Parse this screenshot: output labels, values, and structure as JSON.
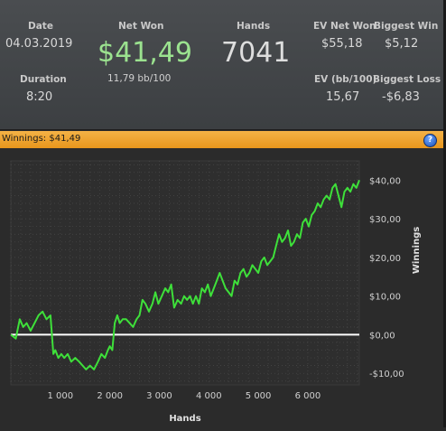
{
  "stats": {
    "date_label": "Date",
    "date_value": "04.03.2019",
    "duration_label": "Duration",
    "duration_value": "8:20",
    "net_won_label": "Net Won",
    "net_won_value": "$41,49",
    "net_won_sub": "11,79 bb/100",
    "hands_label": "Hands",
    "hands_value": "7041",
    "ev_net_won_label": "EV Net Won",
    "ev_net_won_value": "$55,18",
    "ev_bb100_label": "EV (bb/100)",
    "ev_bb100_value": "15,67",
    "biggest_win_label": "Biggest Win",
    "biggest_win_value": "$5,12",
    "biggest_loss_label": "Biggest Loss",
    "biggest_loss_value": "-$6,83"
  },
  "panel": {
    "title": "Winnings: $41,49",
    "help_icon": "help-question-icon"
  },
  "chart_data": {
    "type": "line",
    "title": "",
    "xlabel": "Hands",
    "ylabel": "Winnings",
    "xlim": [
      0,
      7041
    ],
    "ylim": [
      -13,
      45
    ],
    "x_ticks": [
      1000,
      2000,
      3000,
      4000,
      5000,
      6000
    ],
    "x_tick_labels": [
      "1 000",
      "2 000",
      "3 000",
      "4 000",
      "5 000",
      "6 000"
    ],
    "y_ticks": [
      -10,
      0,
      10,
      20,
      30,
      40
    ],
    "y_tick_labels": [
      "-$10,00",
      "$0,00",
      "$10,00",
      "$20,00",
      "$30,00",
      "$40,00"
    ],
    "grid": true,
    "zero_line": true,
    "line_color": "#3ee03a",
    "zero_line_color": "#ffffff",
    "series": [
      {
        "x": [
          0,
          100,
          180,
          250,
          320,
          400,
          480,
          560,
          640,
          720,
          800,
          860,
          900,
          960,
          1020,
          1080,
          1150,
          1220,
          1300,
          1380,
          1450,
          1520,
          1600,
          1680,
          1760,
          1830,
          1900,
          1960,
          2000,
          2050,
          2100,
          2150,
          2200,
          2260,
          2330,
          2400,
          2470,
          2540,
          2600,
          2660,
          2720,
          2790,
          2860,
          2920,
          2980,
          3050,
          3120,
          3180,
          3240,
          3300,
          3370,
          3440,
          3500,
          3560,
          3620,
          3680,
          3740,
          3800,
          3860,
          3920,
          3980,
          4040,
          4100,
          4160,
          4220,
          4280,
          4340,
          4400,
          4460,
          4520,
          4580,
          4640,
          4700,
          4760,
          4820,
          4880,
          4940,
          5000,
          5060,
          5120,
          5180,
          5240,
          5300,
          5360,
          5420,
          5480,
          5540,
          5600,
          5660,
          5720,
          5780,
          5840,
          5900,
          5960,
          6020,
          6080,
          6140,
          6200,
          6260,
          6320,
          6380,
          6440,
          6500,
          6560,
          6620,
          6680,
          6740,
          6800,
          6860,
          6920,
          6980,
          7041
        ],
        "y": [
          0,
          -1,
          4,
          2,
          3,
          1,
          3,
          5,
          6,
          4,
          5,
          -5,
          -4,
          -6,
          -5,
          -6,
          -5,
          -7,
          -6,
          -7,
          -8,
          -9,
          -8,
          -9,
          -7,
          -5,
          -6,
          -4,
          -3,
          -4,
          3,
          5,
          3,
          4,
          4,
          3,
          2,
          4,
          5,
          9,
          8,
          6,
          8,
          11,
          8,
          10,
          12,
          11,
          13,
          7,
          9,
          8,
          10,
          9,
          10,
          8,
          10,
          8,
          12,
          11,
          13,
          10,
          12,
          14,
          16,
          14,
          12,
          11,
          10,
          14,
          13,
          16,
          17,
          15,
          16,
          18,
          17,
          16,
          19,
          20,
          18,
          19,
          20,
          23,
          26,
          24,
          25,
          27,
          23,
          24,
          26,
          25,
          29,
          30,
          28,
          31,
          32,
          34,
          33,
          35,
          36,
          35,
          38,
          39,
          36,
          33,
          37,
          38,
          37,
          39,
          38,
          40
        ]
      }
    ]
  }
}
